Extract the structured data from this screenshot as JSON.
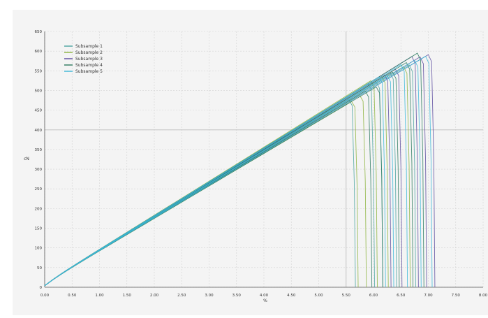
{
  "chart_data": {
    "type": "line",
    "title": "",
    "xlabel": "%",
    "ylabel": "cN",
    "xlim": [
      0,
      8
    ],
    "ylim": [
      0,
      650
    ],
    "xticks": [
      0,
      0.5,
      1,
      1.5,
      2,
      2.5,
      3,
      3.5,
      4,
      4.5,
      5,
      5.5,
      6,
      6.5,
      7,
      7.5,
      8
    ],
    "xtick_labels": [
      "0.00",
      "0.50",
      "1.00",
      "1.50",
      "2.00",
      "2.50",
      "3.00",
      "3.50",
      "4.00",
      "4.50",
      "5.00",
      "5.50",
      "6.00",
      "6.50",
      "7.00",
      "7.50",
      "8.00"
    ],
    "yticks": [
      0,
      50,
      100,
      150,
      200,
      250,
      300,
      350,
      400,
      450,
      500,
      550,
      600,
      650
    ],
    "ytick_labels": [
      "0",
      "50",
      "100",
      "150",
      "200",
      "250",
      "300",
      "350",
      "400",
      "450",
      "500",
      "550",
      "600",
      "650"
    ],
    "grid": true,
    "legend_position": "top-left",
    "series": [
      {
        "name": "Subsample 1",
        "color": "#4aa3a0",
        "curves": [
          {
            "slope": 84.0,
            "break": 5.55
          },
          {
            "slope": 86.0,
            "break": 5.9
          },
          {
            "slope": 85.0,
            "break": 6.3
          },
          {
            "slope": 83.5,
            "break": 6.65
          },
          {
            "slope": 84.5,
            "break": 6.05
          }
        ]
      },
      {
        "name": "Subsample 2",
        "color": "#8bb33c",
        "curves": [
          {
            "slope": 83.0,
            "break": 5.75
          },
          {
            "slope": 85.5,
            "break": 6.15
          },
          {
            "slope": 84.0,
            "break": 6.55
          },
          {
            "slope": 86.5,
            "break": 5.95
          },
          {
            "slope": 82.5,
            "break": 5.6
          }
        ]
      },
      {
        "name": "Subsample 3",
        "color": "#5b4a9e",
        "curves": [
          {
            "slope": 85.0,
            "break": 6.4
          },
          {
            "slope": 84.0,
            "break": 6.85
          },
          {
            "slope": 86.0,
            "break": 6.7
          },
          {
            "slope": 83.0,
            "break": 7.0
          },
          {
            "slope": 85.5,
            "break": 6.2
          }
        ]
      },
      {
        "name": "Subsample 4",
        "color": "#2c7a5e",
        "curves": [
          {
            "slope": 82.5,
            "break": 6.05
          },
          {
            "slope": 84.5,
            "break": 6.35
          },
          {
            "slope": 86.0,
            "break": 6.8
          },
          {
            "slope": 83.5,
            "break": 5.85
          },
          {
            "slope": 85.0,
            "break": 6.6
          }
        ]
      },
      {
        "name": "Subsample 5",
        "color": "#3bb7d8",
        "curves": [
          {
            "slope": 84.5,
            "break": 6.25
          },
          {
            "slope": 85.5,
            "break": 6.5
          },
          {
            "slope": 83.0,
            "break": 6.95
          },
          {
            "slope": 86.0,
            "break": 6.1
          },
          {
            "slope": 84.0,
            "break": 6.75
          }
        ]
      }
    ]
  }
}
